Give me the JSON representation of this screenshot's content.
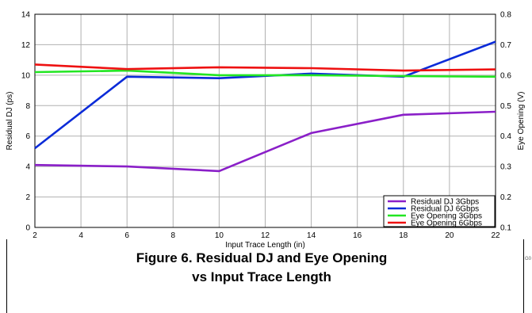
{
  "chart_data": {
    "type": "line",
    "xlabel": "Input Trace Length (in)",
    "ylabel_left": "Residual DJ (ps)",
    "ylabel_right": "Eye Opening (V)",
    "xlim": [
      2,
      22
    ],
    "ylim_left": [
      0,
      14
    ],
    "ylim_right": [
      0.1,
      0.8
    ],
    "x_ticks": [
      "2",
      "4",
      "6",
      "8",
      "10",
      "12",
      "14",
      "16",
      "18",
      "20",
      "22"
    ],
    "y_left_ticks": [
      "0",
      "2",
      "4",
      "6",
      "8",
      "10",
      "12",
      "14"
    ],
    "y_right_ticks": [
      "0.1",
      "0.2",
      "0.3",
      "0.4",
      "0.5",
      "0.6",
      "0.7",
      "0.8"
    ],
    "grid": true,
    "legend_position": "bottom-right",
    "series": [
      {
        "name": "Residual DJ 3Gbps",
        "axis": "left",
        "color": "#8a1fc8",
        "x": [
          2,
          6,
          10,
          14,
          18,
          22
        ],
        "values": [
          4.1,
          4.0,
          3.7,
          6.2,
          7.4,
          7.6
        ]
      },
      {
        "name": "Residual DJ 6Gbps",
        "axis": "left",
        "color": "#0b2bd8",
        "x": [
          2,
          6,
          10,
          14,
          18,
          22
        ],
        "values": [
          5.2,
          9.9,
          9.8,
          10.1,
          9.9,
          12.2
        ]
      },
      {
        "name": "Eye Opening 3Gbps",
        "axis": "right",
        "color": "#22e622",
        "x": [
          2,
          6,
          10,
          14,
          18,
          22
        ],
        "values": [
          0.61,
          0.615,
          0.6,
          0.6,
          0.597,
          0.595
        ]
      },
      {
        "name": "Eye Opening 6Gbps",
        "axis": "right",
        "color": "#ee1111",
        "x": [
          2,
          6,
          10,
          14,
          18,
          22
        ],
        "values": [
          0.635,
          0.62,
          0.626,
          0.623,
          0.615,
          0.619
        ]
      }
    ]
  },
  "figure_code": "G0",
  "caption": {
    "line1": "Figure 6. Residual DJ and Eye Opening",
    "line2": "vs Input Trace Length"
  }
}
